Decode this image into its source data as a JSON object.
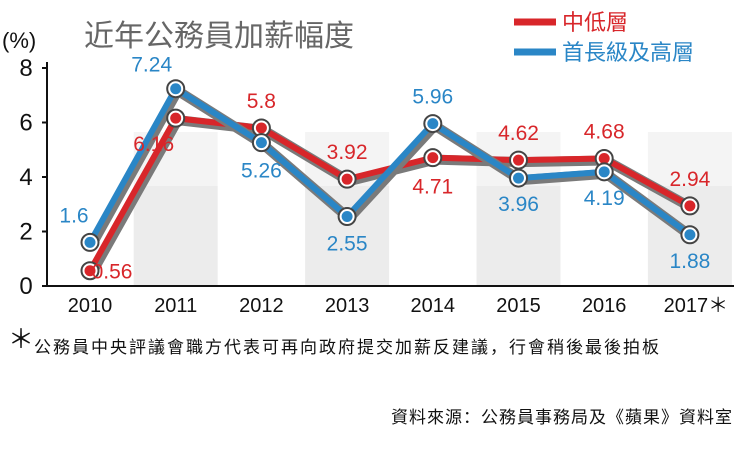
{
  "chart_data": {
    "type": "line",
    "title": "近年公務員加薪幅度",
    "ylabel": "(%)",
    "xlabel": "",
    "ylim": [
      0,
      8
    ],
    "yticks": [
      0,
      2,
      4,
      6,
      8
    ],
    "x": [
      "2010",
      "2011",
      "2012",
      "2013",
      "2014",
      "2015",
      "2016",
      "2017"
    ],
    "x_labels": [
      "2010",
      "2011",
      "2012",
      "2013",
      "2014",
      "2015",
      "2016",
      "2017＊"
    ],
    "legend_position": "top-right",
    "series": [
      {
        "name": "中低層",
        "color": "#d8262a",
        "values": [
          0.56,
          6.16,
          5.8,
          3.92,
          4.71,
          4.62,
          4.68,
          2.94
        ],
        "labels": [
          "0.56",
          "6.16",
          "5.8",
          "3.92",
          "4.71",
          "4.62",
          "4.68",
          "2.94"
        ]
      },
      {
        "name": "首長級及高層",
        "color": "#2a86c6",
        "values": [
          1.6,
          7.24,
          5.26,
          2.55,
          5.96,
          3.96,
          4.19,
          1.88
        ],
        "labels": [
          "1.6",
          "7.24",
          "5.26",
          "2.55",
          "5.96",
          "3.96",
          "4.19",
          "1.88"
        ]
      }
    ]
  },
  "footnote": {
    "mark": "＊",
    "text": "公務員中央評議會職方代表可再向政府提交加薪反建議，行會稍後最後拍板"
  },
  "source": "資料來源：公務員事務局及《蘋果》資料室"
}
